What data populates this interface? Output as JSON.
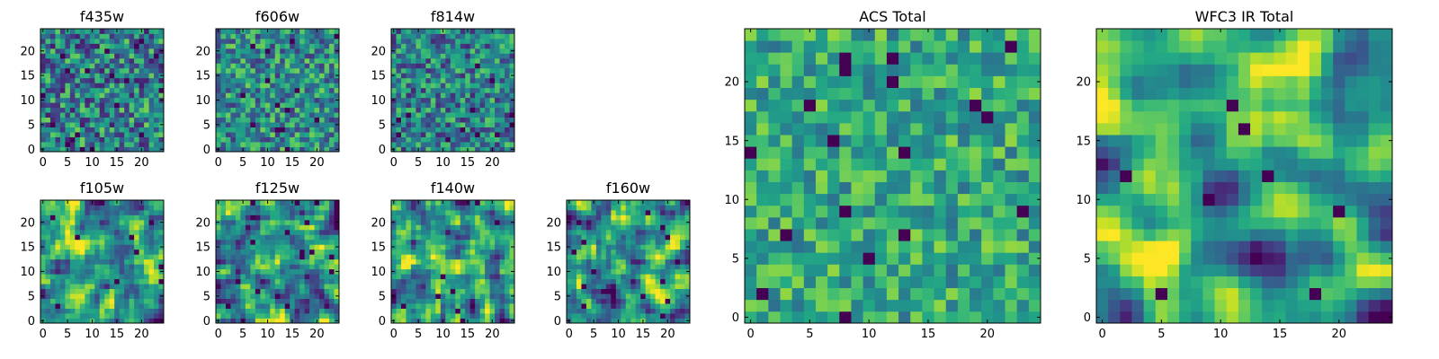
{
  "chart_data": {
    "type": "heatmap",
    "colormap": "viridis",
    "image_size": [
      25,
      25
    ],
    "panels": [
      {
        "id": "f435w",
        "title": "f435w",
        "xticks": [
          0,
          5,
          10,
          15,
          20
        ],
        "yticks": [
          0,
          5,
          10,
          15,
          20
        ],
        "seed": 11,
        "smooth": 0,
        "vmin": 0.35,
        "vmax": 1.0,
        "mean": 0.62,
        "spread": 0.22
      },
      {
        "id": "f606w",
        "title": "f606w",
        "xticks": [
          0,
          5,
          10,
          15,
          20
        ],
        "yticks": [
          0,
          5,
          10,
          15,
          20
        ],
        "seed": 23,
        "smooth": 0,
        "vmin": 0.35,
        "vmax": 1.0,
        "mean": 0.66,
        "spread": 0.2
      },
      {
        "id": "f814w",
        "title": "f814w",
        "xticks": [
          0,
          5,
          10,
          15,
          20
        ],
        "yticks": [
          0,
          5,
          10,
          15,
          20
        ],
        "seed": 37,
        "smooth": 0,
        "vmin": 0.35,
        "vmax": 1.0,
        "mean": 0.64,
        "spread": 0.2
      },
      {
        "id": "f105w",
        "title": "f105w",
        "xticks": [
          0,
          5,
          10,
          15,
          20
        ],
        "yticks": [
          0,
          5,
          10,
          15,
          20
        ],
        "seed": 41,
        "smooth": 1,
        "vmin": 0.3,
        "vmax": 1.0,
        "mean": 0.68,
        "spread": 0.24
      },
      {
        "id": "f125w",
        "title": "f125w",
        "xticks": [
          0,
          5,
          10,
          15,
          20
        ],
        "yticks": [
          0,
          5,
          10,
          15,
          20
        ],
        "seed": 53,
        "smooth": 1,
        "vmin": 0.3,
        "vmax": 1.0,
        "mean": 0.64,
        "spread": 0.25
      },
      {
        "id": "f140w",
        "title": "f140w",
        "xticks": [
          0,
          5,
          10,
          15,
          20
        ],
        "yticks": [
          0,
          5,
          10,
          15,
          20
        ],
        "seed": 67,
        "smooth": 1,
        "vmin": 0.3,
        "vmax": 1.0,
        "mean": 0.68,
        "spread": 0.24
      },
      {
        "id": "f160w",
        "title": "f160w",
        "xticks": [
          0,
          5,
          10,
          15,
          20
        ],
        "yticks": [
          0,
          5,
          10,
          15,
          20
        ],
        "seed": 79,
        "smooth": 1,
        "vmin": 0.3,
        "vmax": 1.0,
        "mean": 0.66,
        "spread": 0.25
      },
      {
        "id": "acs_total",
        "title": "ACS Total",
        "xticks": [
          0,
          5,
          10,
          15,
          20
        ],
        "yticks": [
          0,
          5,
          10,
          15,
          20
        ],
        "seed": 97,
        "smooth": 0,
        "vmin": 0.3,
        "vmax": 1.0,
        "mean": 0.72,
        "spread": 0.16
      },
      {
        "id": "wfc3ir_total",
        "title": "WFC3 IR Total",
        "xticks": [
          0,
          5,
          10,
          15,
          20
        ],
        "yticks": [
          0,
          5,
          10,
          15,
          20
        ],
        "seed": 131,
        "smooth": 2,
        "vmin": 0.2,
        "vmax": 1.0,
        "mean": 0.68,
        "spread": 0.28
      }
    ]
  }
}
